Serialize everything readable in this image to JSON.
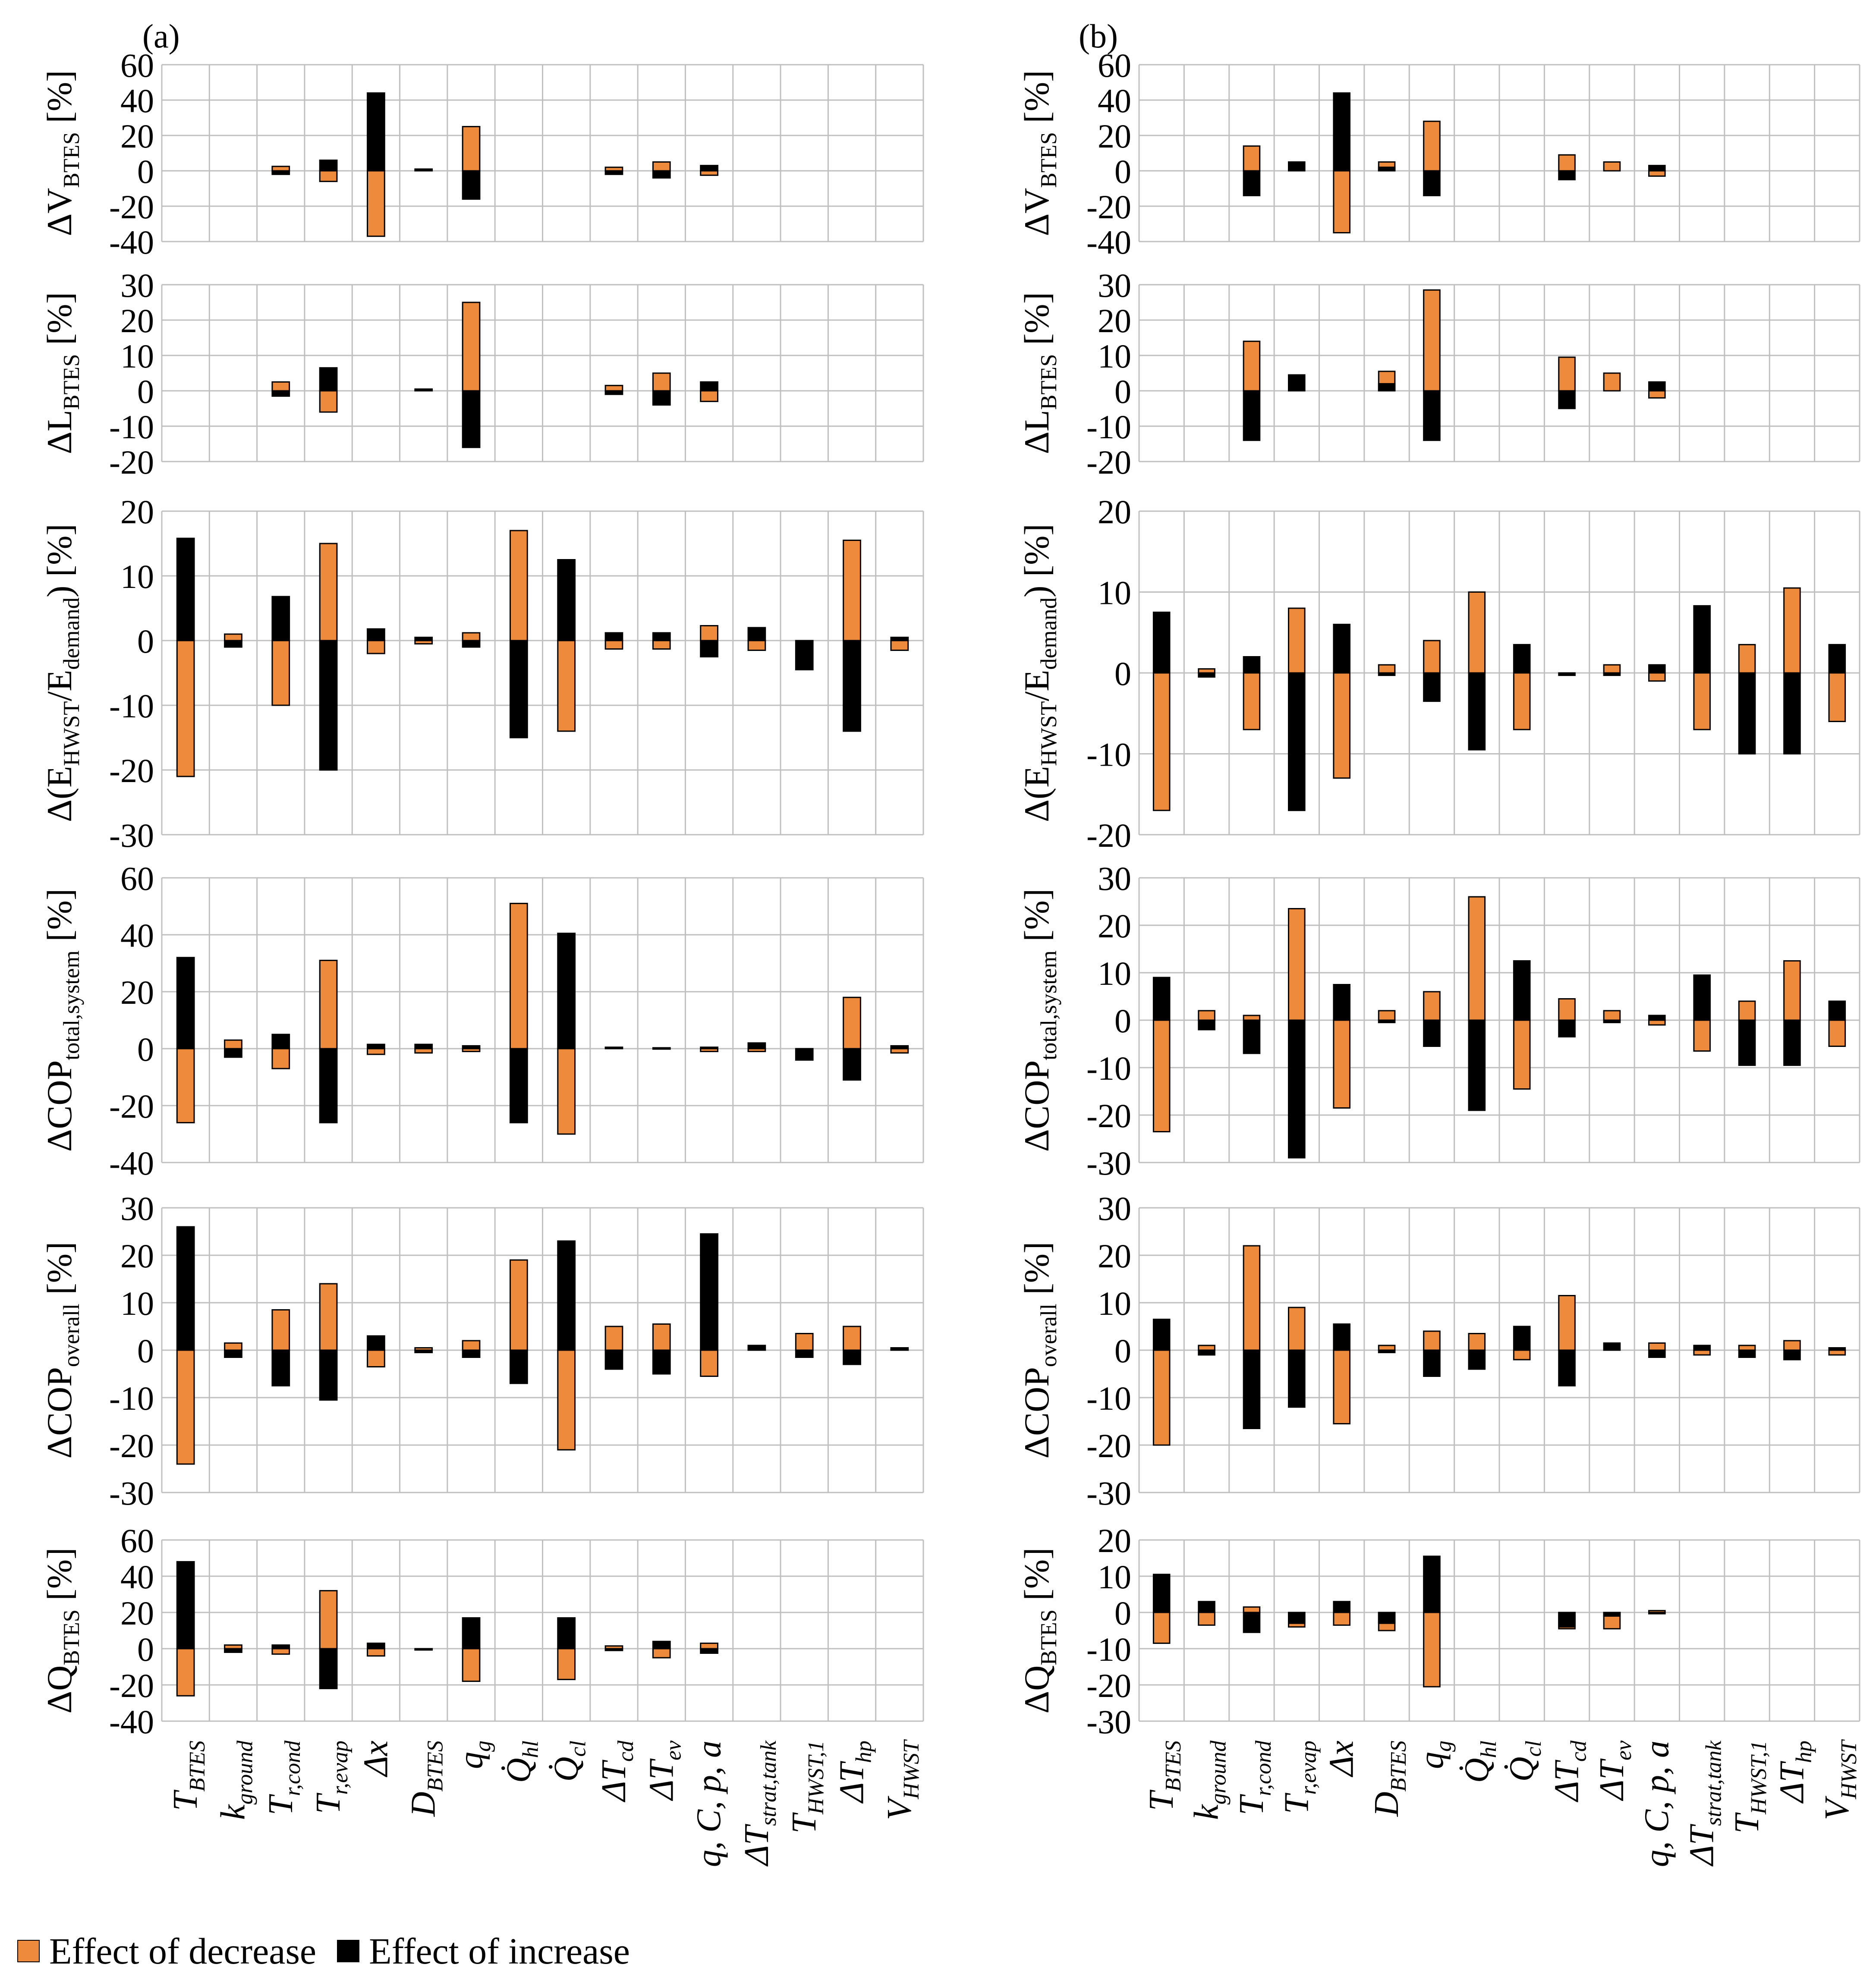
{
  "colors": {
    "decrease": "#EE8A3C",
    "increase": "#000000",
    "grid": "#BFBFBF"
  },
  "legend": {
    "decrease": "Effect of decrease",
    "increase": "Effect of increase"
  },
  "chart_data": {
    "type": "bar",
    "categories": [
      "T_BTES",
      "k_ground",
      "T_r,cond",
      "T_r,evap",
      "Δx",
      "D_BTES",
      "q_g",
      "Q̇_hl",
      "Q̇_cl",
      "ΔT_cd",
      "ΔT_ev",
      "q, C, p, a",
      "ΔT_strat,tank",
      "T_HWST,1",
      "ΔT_hp",
      "V_HWST"
    ],
    "panels": [
      {
        "label": "(a)",
        "rows": [
          {
            "ylabel": "ΔV_BTES [%]",
            "ylim": [
              -40,
              60
            ],
            "ticks": [
              -40,
              -20,
              0,
              20,
              40,
              60
            ],
            "decrease": [
              0,
              0,
              2.5,
              -6,
              -37,
              0,
              25,
              0,
              0,
              2,
              5,
              -2.5,
              0,
              0,
              0,
              0
            ],
            "increase": [
              0,
              0,
              -2,
              6,
              44,
              1,
              -16,
              0,
              0,
              -2,
              -4,
              3,
              0,
              0,
              0,
              0
            ]
          },
          {
            "ylabel": "ΔL_BTES [%]",
            "ylim": [
              -20,
              30
            ],
            "ticks": [
              -20,
              -10,
              0,
              10,
              20,
              30
            ],
            "decrease": [
              0,
              0,
              2.5,
              -6,
              0,
              0,
              25,
              0,
              0,
              1.5,
              5,
              -3,
              0,
              0,
              0,
              0
            ],
            "increase": [
              0,
              0,
              -1.5,
              6.5,
              0,
              0.5,
              -16,
              0,
              0,
              -1,
              -4,
              2.5,
              0,
              0,
              0,
              0
            ]
          },
          {
            "ylabel": "Δ(E_HWST/E_demand) [%]",
            "ylim": [
              -30,
              20
            ],
            "ticks": [
              -30,
              -20,
              -10,
              0,
              10,
              20
            ],
            "decrease": [
              -21,
              1,
              -10,
              15,
              -2,
              -0.5,
              1.2,
              17,
              -14,
              -1.3,
              -1.3,
              2.3,
              -1.5,
              0,
              15.5,
              -1.5
            ],
            "increase": [
              15.8,
              -1,
              6.8,
              -20,
              1.8,
              0.5,
              -1,
              -15,
              12.5,
              1.2,
              1.2,
              -2.5,
              2,
              -4.5,
              -14,
              0.5
            ]
          },
          {
            "ylabel": "ΔCOP_total,system [%]",
            "ylim": [
              -40,
              60
            ],
            "ticks": [
              -40,
              -20,
              0,
              20,
              40,
              60
            ],
            "decrease": [
              -26,
              3,
              -7,
              31,
              -2,
              -1.5,
              -1,
              51,
              -30,
              0,
              0,
              -1,
              -1,
              0,
              18,
              -1.5
            ],
            "increase": [
              32,
              -3,
              5,
              -26,
              1.5,
              1.5,
              1,
              -26,
              40.5,
              0.5,
              0.3,
              0.5,
              2,
              -4,
              -11,
              1
            ]
          },
          {
            "ylabel": "ΔCOP_overall [%]",
            "ylim": [
              -30,
              30
            ],
            "ticks": [
              -30,
              -20,
              -10,
              0,
              10,
              20,
              30
            ],
            "decrease": [
              -24,
              1.5,
              8.5,
              14,
              -3.5,
              0.5,
              2,
              19,
              -21,
              5,
              5.5,
              -5.5,
              0,
              3.5,
              5,
              0
            ],
            "increase": [
              26,
              -1.5,
              -7.5,
              -10.5,
              3,
              -0.5,
              -1.5,
              -7,
              23,
              -4,
              -5,
              24.5,
              1,
              -1.5,
              -3,
              0.5
            ]
          },
          {
            "ylabel": "ΔQ_BTES [%]",
            "ylim": [
              -40,
              60
            ],
            "ticks": [
              -40,
              -20,
              0,
              20,
              40,
              60
            ],
            "decrease": [
              -26,
              2,
              -3,
              32,
              -4,
              0,
              -18,
              0,
              -17,
              1.5,
              -5,
              3,
              0,
              0,
              0,
              0
            ],
            "increase": [
              48,
              -2,
              2,
              -22,
              3,
              -0.5,
              17,
              0,
              17,
              -1,
              4,
              -2.5,
              0,
              0,
              0,
              0
            ]
          }
        ]
      },
      {
        "label": "(b)",
        "rows": [
          {
            "ylabel": "ΔV_BTES [%]",
            "ylim": [
              -40,
              60
            ],
            "ticks": [
              -40,
              -20,
              0,
              20,
              40,
              60
            ],
            "decrease": [
              0,
              0,
              14,
              0,
              -35,
              5,
              28,
              0,
              0,
              9,
              5,
              -3,
              0,
              0,
              0,
              0
            ],
            "increase": [
              0,
              0,
              -14,
              5,
              44,
              2,
              -14,
              0,
              0,
              -5,
              0,
              3,
              0,
              0,
              0,
              0
            ]
          },
          {
            "ylabel": "ΔL_BTES [%]",
            "ylim": [
              -20,
              30
            ],
            "ticks": [
              -20,
              -10,
              0,
              10,
              20,
              30
            ],
            "decrease": [
              0,
              0,
              14,
              0,
              0,
              5.5,
              28.5,
              0,
              0,
              9.5,
              5,
              -2,
              0,
              0,
              0,
              0
            ],
            "increase": [
              0,
              0,
              -14,
              4.5,
              0,
              2,
              -14,
              0,
              0,
              -5,
              0,
              2.5,
              0,
              0,
              0,
              0
            ]
          },
          {
            "ylabel": "Δ(E_HWST/E_demand) [%]",
            "ylim": [
              -20,
              20
            ],
            "ticks": [
              -20,
              -10,
              0,
              10,
              20
            ],
            "decrease": [
              -17,
              0.5,
              -7,
              8,
              -13,
              1,
              4,
              10,
              -7,
              0,
              1,
              -1,
              -7,
              3.5,
              10.5,
              -6
            ],
            "increase": [
              7.5,
              -0.5,
              2,
              -17,
              6,
              -0.3,
              -3.5,
              -9.5,
              3.5,
              -0.3,
              -0.3,
              1,
              8.3,
              -10,
              -10,
              3.5
            ]
          },
          {
            "ylabel": "ΔCOP_total,system [%]",
            "ylim": [
              -30,
              30
            ],
            "ticks": [
              -30,
              -20,
              -10,
              0,
              10,
              20,
              30
            ],
            "decrease": [
              -23.5,
              2,
              1,
              23.5,
              -18.5,
              2,
              6,
              26,
              -14.5,
              4.5,
              2,
              -1,
              -6.5,
              4,
              12.5,
              -5.5
            ],
            "increase": [
              9,
              -2,
              -7,
              -29,
              7.5,
              -0.5,
              -5.5,
              -19,
              12.5,
              -3.5,
              -0.5,
              1,
              9.5,
              -9.5,
              -9.5,
              4
            ]
          },
          {
            "ylabel": "ΔCOP_overall [%]",
            "ylim": [
              -30,
              30
            ],
            "ticks": [
              -30,
              -20,
              -10,
              0,
              10,
              20,
              30
            ],
            "decrease": [
              -20,
              1,
              22,
              9,
              -15.5,
              1,
              4,
              3.5,
              -2,
              11.5,
              0,
              1.5,
              -1,
              1,
              2,
              -1
            ],
            "increase": [
              6.5,
              -1,
              -16.5,
              -12,
              5.5,
              -0.5,
              -5.5,
              -4,
              5,
              -7.5,
              1.5,
              -1.5,
              1,
              -1.5,
              -2,
              0.5
            ]
          },
          {
            "ylabel": "ΔQ_BTES [%]",
            "ylim": [
              -30,
              20
            ],
            "ticks": [
              -30,
              -20,
              -10,
              0,
              10,
              20
            ],
            "decrease": [
              -8.5,
              -3.5,
              1.5,
              -4,
              -3.5,
              -5,
              -20.5,
              0,
              0,
              -4.5,
              -4.5,
              0.5,
              0,
              0,
              0,
              0
            ],
            "increase": [
              10.5,
              3,
              -5.5,
              -3,
              3,
              -3,
              15.5,
              0,
              0,
              -4,
              -1,
              -0.3,
              0,
              0,
              0,
              0
            ]
          }
        ]
      }
    ]
  }
}
